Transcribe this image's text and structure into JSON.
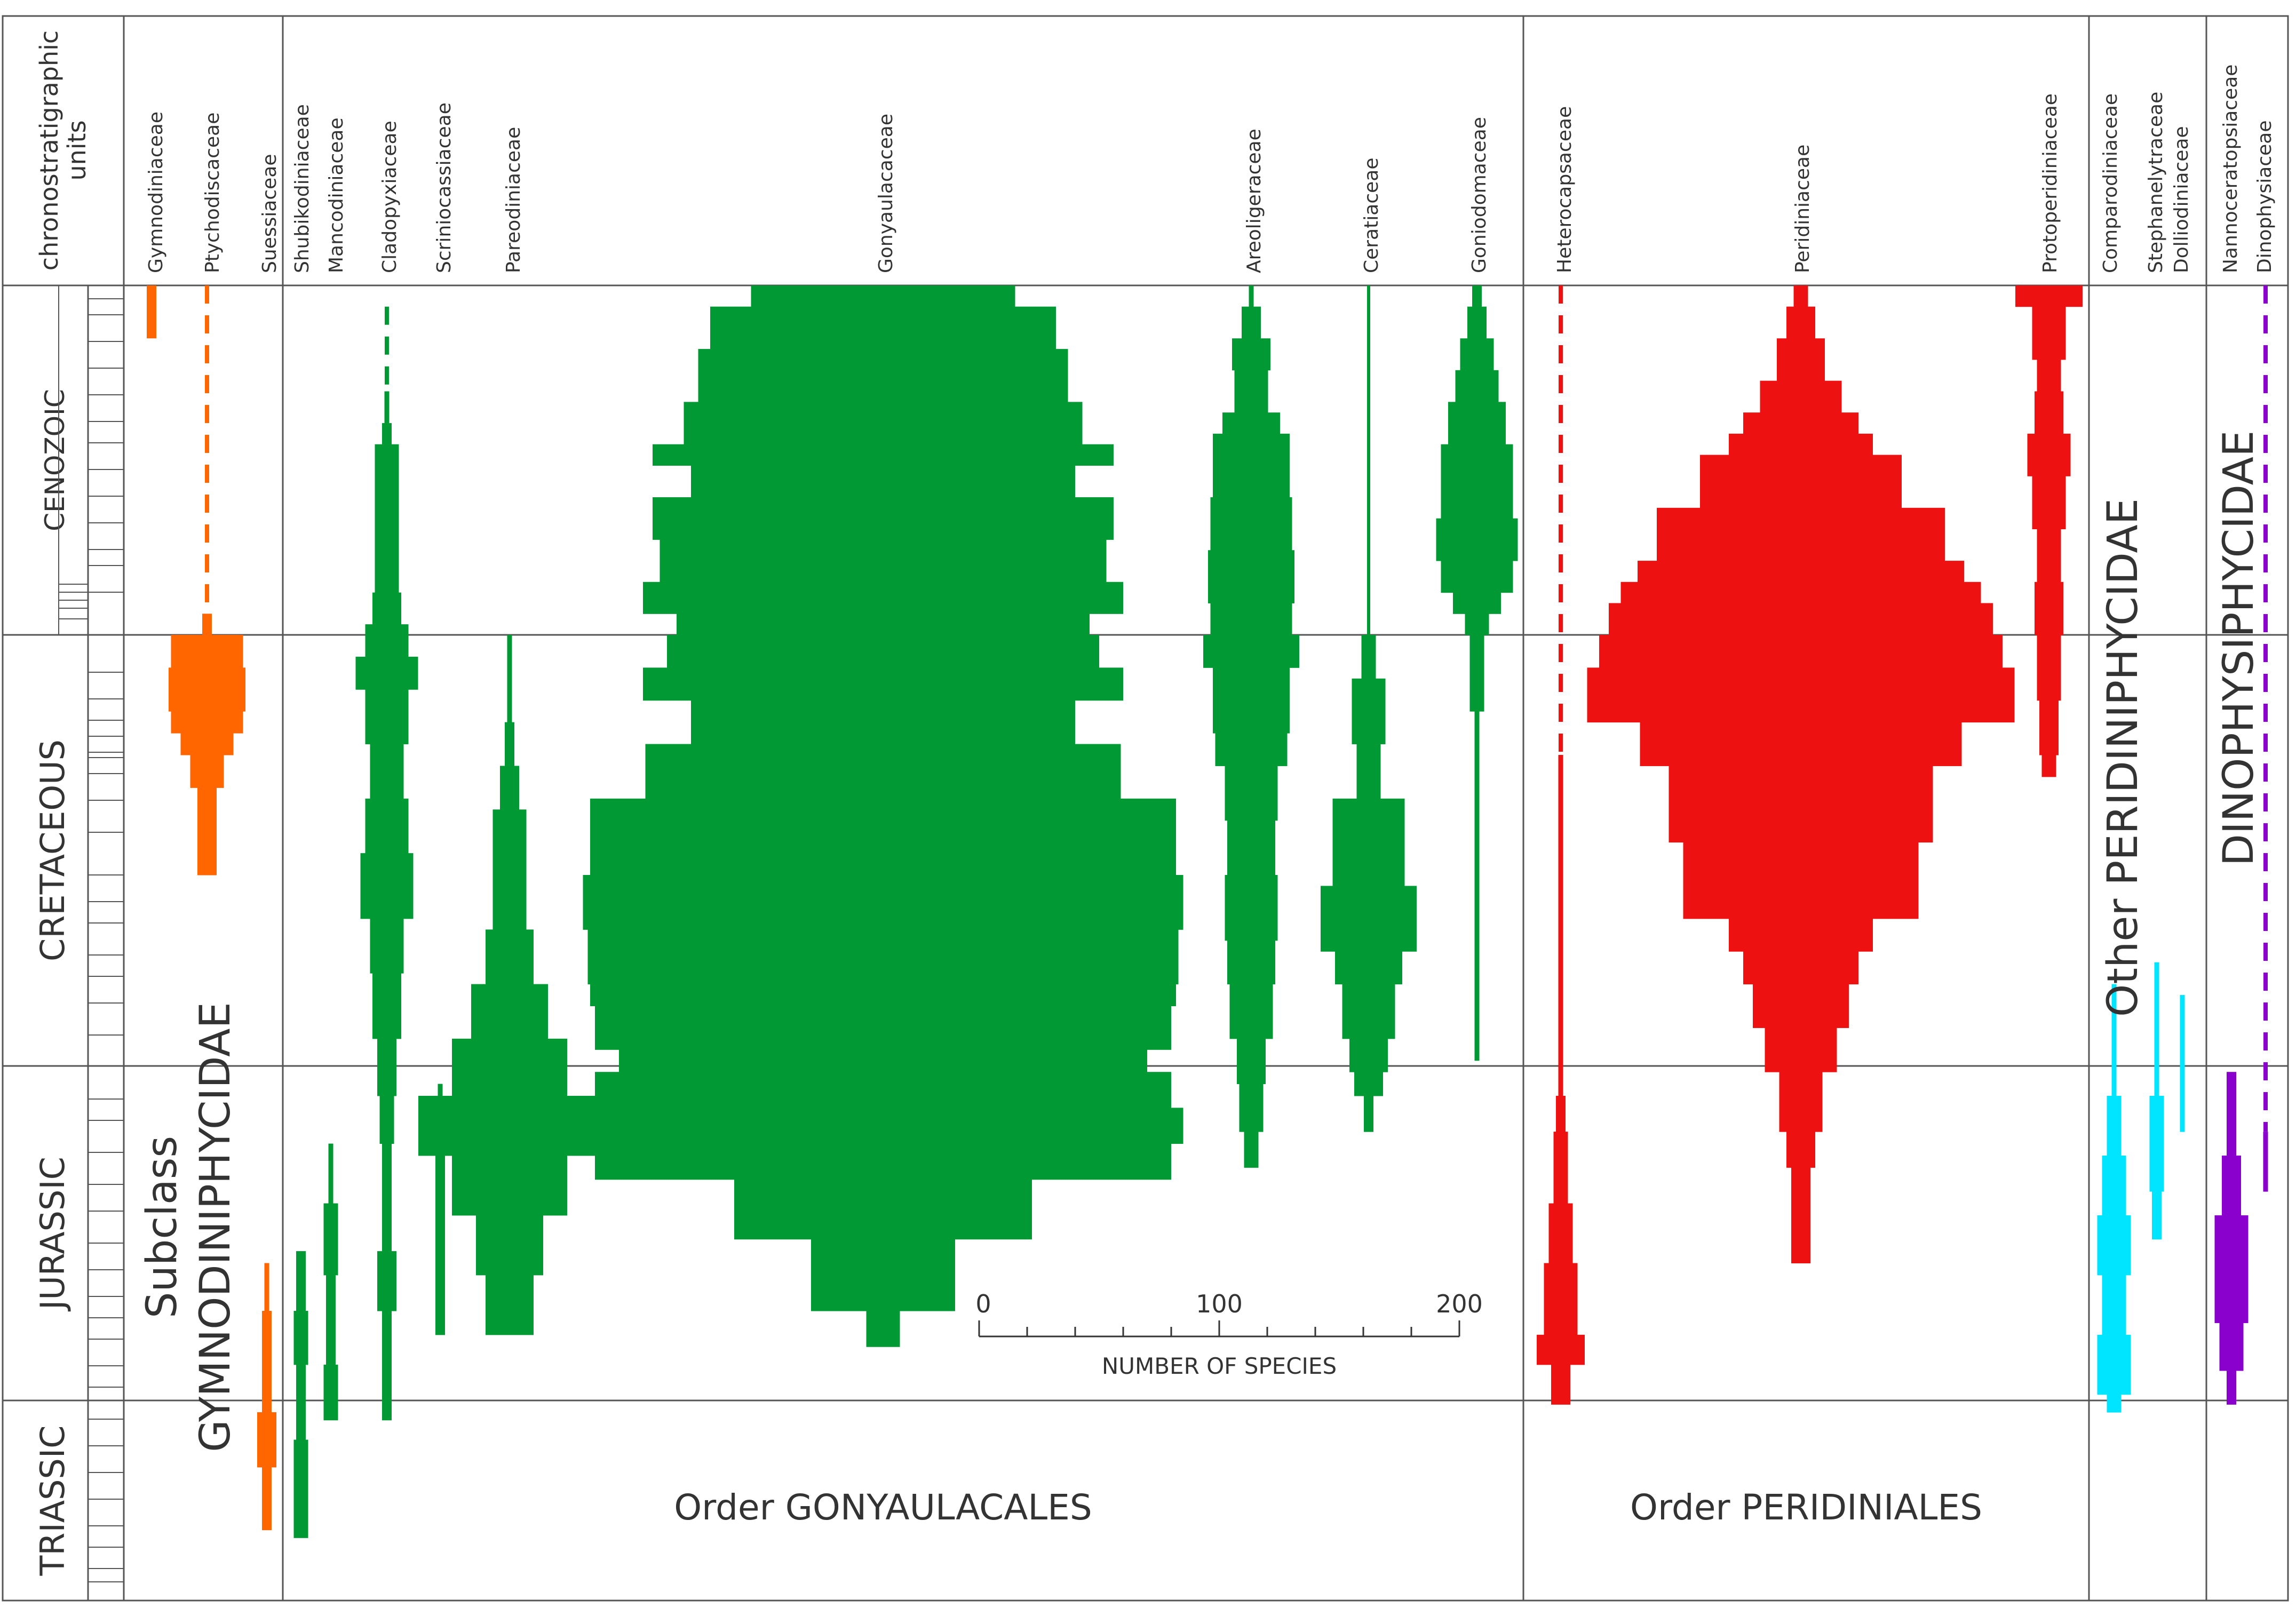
{
  "chart_data": {
    "type": "range-diversity",
    "header": "chronostratigraphic units",
    "eras": [
      {
        "name": "CENOZOIC",
        "from": 0,
        "to": 66
      },
      {
        "name": "CRETACEOUS",
        "from": 66,
        "to": 145
      },
      {
        "name": "JURASSIC",
        "from": 145,
        "to": 201
      },
      {
        "name": "TRIASSIC",
        "from": 201,
        "to": 252
      }
    ],
    "families": [
      {
        "name": "Gymnodiniaceae",
        "color": "#ff6600",
        "segments": [
          {
            "from": 0,
            "to": 10,
            "w": 4
          }
        ]
      },
      {
        "name": "Ptychodiscaceae",
        "color": "#ff6600",
        "dashed": [
          0,
          62
        ],
        "profile": [
          [
            62,
            4
          ],
          [
            66,
            30
          ],
          [
            72,
            32
          ],
          [
            80,
            30
          ],
          [
            84,
            22
          ],
          [
            88,
            14
          ],
          [
            94,
            8
          ],
          [
            110,
            4
          ]
        ]
      },
      {
        "name": "Suessiaceae",
        "color": "#ff6600",
        "profile": [
          [
            178,
            2
          ],
          [
            186,
            4
          ],
          [
            204,
            8
          ],
          [
            218,
            4
          ],
          [
            234,
            2
          ]
        ]
      },
      {
        "name": "Shubikodiniaceae",
        "color": "#009933",
        "profile": [
          [
            176,
            4
          ],
          [
            186,
            6
          ],
          [
            195,
            4
          ],
          [
            211,
            6
          ],
          [
            236,
            4
          ]
        ]
      },
      {
        "name": "Mancodiniaceae",
        "color": "#009933",
        "profile": [
          [
            158,
            2
          ],
          [
            168,
            6
          ],
          [
            180,
            4
          ],
          [
            195,
            6
          ],
          [
            206,
            2
          ]
        ]
      },
      {
        "name": "Cladopyxiaceae",
        "color": "#009933",
        "dashed": [
          4,
          20
        ],
        "profile": [
          [
            20,
            2
          ],
          [
            26,
            4
          ],
          [
            30,
            10
          ],
          [
            58,
            12
          ],
          [
            64,
            18
          ],
          [
            70,
            26
          ],
          [
            76,
            18
          ],
          [
            86,
            14
          ],
          [
            96,
            18
          ],
          [
            106,
            22
          ],
          [
            118,
            14
          ],
          [
            128,
            12
          ],
          [
            140,
            8
          ],
          [
            150,
            6
          ],
          [
            158,
            4
          ],
          [
            176,
            8
          ],
          [
            186,
            4
          ],
          [
            206,
            2
          ]
        ]
      },
      {
        "name": "Scriniocassiaceae",
        "color": "#009933",
        "profile": [
          [
            148,
            2
          ],
          [
            160,
            4
          ],
          [
            176,
            4
          ],
          [
            190,
            2
          ]
        ]
      },
      {
        "name": "Pareodiniaceae",
        "color": "#009933",
        "profile": [
          [
            66,
            2
          ],
          [
            82,
            4
          ],
          [
            90,
            8
          ],
          [
            98,
            14
          ],
          [
            120,
            20
          ],
          [
            130,
            32
          ],
          [
            140,
            48
          ],
          [
            150,
            76
          ],
          [
            160,
            48
          ],
          [
            170,
            28
          ],
          [
            180,
            20
          ],
          [
            190,
            14
          ]
        ]
      },
      {
        "name": "Gonyaulacaceae",
        "color": "#009933",
        "profile": [
          [
            0,
            110
          ],
          [
            4,
            144
          ],
          [
            12,
            154
          ],
          [
            22,
            166
          ],
          [
            30,
            192
          ],
          [
            34,
            160
          ],
          [
            40,
            192
          ],
          [
            48,
            186
          ],
          [
            56,
            200
          ],
          [
            62,
            172
          ],
          [
            66,
            180
          ],
          [
            72,
            200
          ],
          [
            78,
            160
          ],
          [
            86,
            198
          ],
          [
            96,
            244
          ],
          [
            110,
            250
          ],
          [
            120,
            246
          ],
          [
            130,
            244
          ],
          [
            134,
            240
          ],
          [
            142,
            220
          ],
          [
            146,
            240
          ],
          [
            152,
            250
          ],
          [
            158,
            240
          ],
          [
            164,
            124
          ],
          [
            174,
            60
          ],
          [
            186,
            14
          ],
          [
            192,
            4
          ]
        ]
      },
      {
        "name": "Areoligeraceae",
        "color": "#009933",
        "profile": [
          [
            0,
            2
          ],
          [
            4,
            8
          ],
          [
            10,
            16
          ],
          [
            16,
            14
          ],
          [
            24,
            24
          ],
          [
            28,
            32
          ],
          [
            40,
            34
          ],
          [
            50,
            36
          ],
          [
            60,
            34
          ],
          [
            66,
            40
          ],
          [
            72,
            32
          ],
          [
            84,
            30
          ],
          [
            90,
            22
          ],
          [
            100,
            20
          ],
          [
            110,
            22
          ],
          [
            122,
            20
          ],
          [
            130,
            18
          ],
          [
            140,
            12
          ],
          [
            148,
            10
          ],
          [
            156,
            6
          ],
          [
            162,
            2
          ]
        ]
      },
      {
        "name": "Ceratiaceae",
        "color": "#009933",
        "line": [
          0,
          66
        ],
        "profile": [
          [
            66,
            6
          ],
          [
            74,
            14
          ],
          [
            86,
            10
          ],
          [
            96,
            30
          ],
          [
            112,
            40
          ],
          [
            118,
            40
          ],
          [
            124,
            28
          ],
          [
            130,
            22
          ],
          [
            140,
            16
          ],
          [
            146,
            12
          ],
          [
            150,
            4
          ],
          [
            156,
            2
          ]
        ]
      },
      {
        "name": "Goniodomaceae",
        "color": "#009933",
        "profile": [
          [
            0,
            4
          ],
          [
            4,
            8
          ],
          [
            10,
            14
          ],
          [
            16,
            18
          ],
          [
            22,
            24
          ],
          [
            30,
            30
          ],
          [
            44,
            34
          ],
          [
            52,
            30
          ],
          [
            58,
            20
          ],
          [
            62,
            10
          ],
          [
            66,
            6
          ],
          [
            80,
            2
          ],
          [
            144,
            2
          ]
        ]
      },
      {
        "name": "Heterocapsaceae",
        "color": "#ee1111",
        "dashed": [
          0,
          88
        ],
        "profile": [
          [
            88,
            2
          ],
          [
            144,
            2
          ],
          [
            150,
            4
          ],
          [
            156,
            6
          ],
          [
            168,
            10
          ],
          [
            178,
            14
          ],
          [
            190,
            20
          ],
          [
            195,
            8
          ],
          [
            202,
            2
          ]
        ]
      },
      {
        "name": "Peridiniaceae",
        "color": "#ee1111",
        "profile": [
          [
            0,
            6
          ],
          [
            4,
            12
          ],
          [
            10,
            20
          ],
          [
            18,
            34
          ],
          [
            24,
            48
          ],
          [
            28,
            60
          ],
          [
            32,
            84
          ],
          [
            42,
            120
          ],
          [
            52,
            136
          ],
          [
            56,
            150
          ],
          [
            60,
            160
          ],
          [
            66,
            168
          ],
          [
            72,
            178
          ],
          [
            82,
            134
          ],
          [
            90,
            110
          ],
          [
            104,
            98
          ],
          [
            118,
            60
          ],
          [
            124,
            48
          ],
          [
            130,
            40
          ],
          [
            138,
            30
          ],
          [
            146,
            18
          ],
          [
            156,
            12
          ],
          [
            162,
            8
          ],
          [
            178,
            8
          ]
        ]
      },
      {
        "name": "Protoperidiniaceae",
        "color": "#ee1111",
        "profile": [
          [
            0,
            28
          ],
          [
            4,
            14
          ],
          [
            14,
            10
          ],
          [
            20,
            12
          ],
          [
            28,
            18
          ],
          [
            36,
            14
          ],
          [
            46,
            10
          ],
          [
            56,
            12
          ],
          [
            66,
            10
          ],
          [
            78,
            8
          ],
          [
            88,
            6
          ],
          [
            92,
            2
          ]
        ]
      },
      {
        "name": "Comparodiniaceae",
        "color": "#00e5ff",
        "profile": [
          [
            130,
            2
          ],
          [
            150,
            6
          ],
          [
            160,
            10
          ],
          [
            170,
            14
          ],
          [
            180,
            10
          ],
          [
            190,
            14
          ],
          [
            200,
            6
          ],
          [
            204,
            2
          ]
        ]
      },
      {
        "name": "Stephanelytraceae",
        "color": "#00e5ff",
        "profile": [
          [
            126,
            2
          ],
          [
            150,
            6
          ],
          [
            166,
            4
          ],
          [
            174,
            2
          ]
        ]
      },
      {
        "name": "Dolliodiniaceae",
        "color": "#00e5ff",
        "profile": [
          [
            132,
            2
          ],
          [
            156,
            2
          ]
        ]
      },
      {
        "name": "Nannoceratopsiaceae",
        "color": "#8a00cc",
        "profile": [
          [
            146,
            4
          ],
          [
            160,
            8
          ],
          [
            170,
            14
          ],
          [
            188,
            10
          ],
          [
            196,
            4
          ],
          [
            202,
            2
          ]
        ]
      },
      {
        "name": "Dinophysiaceae",
        "color": "#8a00cc",
        "dashed": [
          0,
          156
        ],
        "profile": [
          [
            156,
            2
          ],
          [
            166,
            4
          ]
        ]
      }
    ],
    "scale": {
      "ticks": [
        "0",
        "100",
        "200"
      ],
      "label": "NUMBER OF SPECIES"
    },
    "group_labels": {
      "gymno": [
        "Subclass",
        "GYMNODINIPHYCIDAE"
      ],
      "gonyaulacales": "Order GONYAULACALES",
      "peridiniales": "Order PERIDINIALES",
      "peridini": "Other PERIDINIPHYCIDAE",
      "dinophysi": "DINOPHYSIPHYCIDAE"
    }
  }
}
